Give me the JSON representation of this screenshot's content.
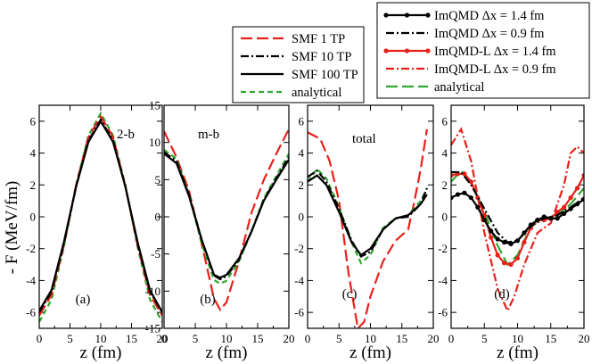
{
  "ylabel": "- F (MeV/fm)",
  "legend_smf": [
    {
      "label": "SMF 1 TP",
      "color": "#e8201a",
      "dash": "long",
      "marker": false
    },
    {
      "label": "SMF 10 TP",
      "color": "#000000",
      "dash": "dashdot",
      "marker": false
    },
    {
      "label": "SMF 100 TP",
      "color": "#000000",
      "dash": "solid",
      "marker": false
    },
    {
      "label": "analytical",
      "color": "#2ea82e",
      "dash": "short",
      "marker": false
    }
  ],
  "legend_imqmd": [
    {
      "label": "ImQMD Δx = 1.4 fm",
      "color": "#000000",
      "dash": "solid",
      "marker": true
    },
    {
      "label": "ImQMD Δx = 0.9 fm",
      "color": "#000000",
      "dash": "dashdot",
      "marker": false
    },
    {
      "label": "ImQMD-L Δx = 1.4 fm",
      "color": "#e8201a",
      "dash": "solid",
      "marker": true
    },
    {
      "label": "ImQMD-L Δx = 0.9 fm",
      "color": "#e8201a",
      "dash": "dashdot",
      "marker": false
    },
    {
      "label": "analytical",
      "color": "#2ea82e",
      "dash": "long",
      "marker": false
    }
  ],
  "chart_data": [
    {
      "type": "line",
      "id": "a",
      "inside_label": "2-b",
      "panel_label": "(a)",
      "xlabel": "z (fm)",
      "xlim": [
        0,
        20
      ],
      "ylim": [
        -7,
        7
      ],
      "xticks": [
        0,
        5,
        10,
        15,
        20
      ],
      "yticks": [
        -6,
        -4,
        -2,
        0,
        2,
        4,
        6
      ],
      "series": [
        {
          "name": "analytical",
          "color": "#2ea82e",
          "dash": "short",
          "marker": false,
          "x": [
            0,
            2,
            4,
            6,
            8,
            10,
            12,
            14,
            16,
            18,
            20
          ],
          "y": [
            -6.6,
            -5.2,
            -1.9,
            2.0,
            5.1,
            6.5,
            5.1,
            2.0,
            -1.9,
            -5.2,
            -6.6
          ]
        },
        {
          "name": "SMF 1 TP",
          "color": "#e8201a",
          "dash": "long",
          "marker": false,
          "x": [
            0,
            2,
            4,
            6,
            8,
            10,
            12,
            14,
            16,
            18,
            20
          ],
          "y": [
            -6.2,
            -4.9,
            -1.8,
            2.0,
            5.0,
            6.3,
            5.0,
            1.9,
            -1.8,
            -4.9,
            -6.2
          ]
        },
        {
          "name": "SMF 10 TP",
          "color": "#000000",
          "dash": "dashdot",
          "marker": false,
          "x": [
            0,
            2,
            4,
            6,
            8,
            10,
            12,
            14,
            16,
            18,
            20
          ],
          "y": [
            -6.0,
            -4.7,
            -1.7,
            1.9,
            4.8,
            6.1,
            4.8,
            1.9,
            -1.7,
            -4.7,
            -6.0
          ]
        },
        {
          "name": "SMF 100 TP",
          "color": "#000000",
          "dash": "solid",
          "marker": false,
          "x": [
            0,
            2,
            4,
            6,
            8,
            10,
            12,
            14,
            16,
            18,
            20
          ],
          "y": [
            -5.9,
            -4.6,
            -1.6,
            1.9,
            4.7,
            6.0,
            4.7,
            1.9,
            -1.6,
            -4.6,
            -6.0
          ]
        }
      ]
    },
    {
      "type": "line",
      "id": "b",
      "inside_label": "m-b",
      "panel_label": "(b)",
      "xlabel": "z (fm)",
      "xlim": [
        0,
        20
      ],
      "ylim": [
        -15,
        15
      ],
      "xticks": [
        0,
        5,
        10,
        15,
        20
      ],
      "yticks": [
        -15,
        -10,
        -5,
        0,
        5,
        10,
        15
      ],
      "series": [
        {
          "name": "SMF 1 TP",
          "color": "#e8201a",
          "dash": "long",
          "marker": false,
          "x": [
            0,
            2,
            4,
            6,
            8,
            9,
            10,
            12,
            14,
            16,
            18,
            20
          ],
          "y": [
            11.5,
            8.0,
            3.5,
            -3.5,
            -11.0,
            -12.5,
            -11.5,
            -6.0,
            0.5,
            5.0,
            8.5,
            11.8
          ]
        },
        {
          "name": "analytical",
          "color": "#2ea82e",
          "dash": "short",
          "marker": false,
          "x": [
            0,
            2,
            4,
            6,
            8,
            9,
            10,
            12,
            14,
            16,
            18,
            20
          ],
          "y": [
            9.0,
            7.8,
            3.0,
            -3.5,
            -8.5,
            -9.0,
            -8.6,
            -6.0,
            -2.0,
            2.5,
            5.5,
            8.5
          ]
        },
        {
          "name": "SMF 10 TP",
          "color": "#000000",
          "dash": "dashdot",
          "marker": false,
          "x": [
            0,
            2,
            4,
            6,
            8,
            9,
            10,
            12,
            14,
            16,
            18,
            20
          ],
          "y": [
            8.7,
            7.5,
            3.0,
            -3.0,
            -7.9,
            -8.4,
            -8.0,
            -5.8,
            -2.0,
            2.3,
            5.2,
            8.0
          ]
        },
        {
          "name": "SMF 100 TP",
          "color": "#000000",
          "dash": "solid",
          "marker": false,
          "x": [
            0,
            2,
            4,
            6,
            8,
            9,
            10,
            12,
            14,
            16,
            18,
            20
          ],
          "y": [
            8.5,
            7.2,
            2.8,
            -3.0,
            -7.8,
            -8.2,
            -7.8,
            -5.6,
            -2.0,
            2.2,
            5.0,
            7.7
          ]
        }
      ]
    },
    {
      "type": "line",
      "id": "c",
      "inside_label": "total",
      "panel_label": "(c)",
      "xlabel": "z (fm)",
      "xlim": [
        0,
        20
      ],
      "ylim": [
        -7,
        7
      ],
      "xticks": [
        0,
        5,
        10,
        15,
        20
      ],
      "yticks": [
        -6,
        -4,
        -2,
        0,
        2,
        4,
        6
      ],
      "series": [
        {
          "name": "SMF 1 TP",
          "color": "#e8201a",
          "dash": "long",
          "marker": false,
          "x": [
            0,
            2,
            3.5,
            5,
            6.5,
            8,
            9,
            10,
            12,
            14,
            16,
            17,
            18,
            19
          ],
          "y": [
            5.3,
            4.9,
            3.5,
            1.0,
            -3.5,
            -7.0,
            -6.6,
            -5.0,
            -2.8,
            -1.5,
            -0.8,
            1.0,
            3.0,
            5.5
          ]
        },
        {
          "name": "analytical",
          "color": "#2ea82e",
          "dash": "short",
          "marker": false,
          "x": [
            0,
            1.5,
            3,
            5,
            7,
            8.5,
            10,
            12,
            14,
            16,
            18,
            19
          ],
          "y": [
            2.2,
            3.0,
            2.4,
            0.6,
            -1.6,
            -2.9,
            -2.4,
            -0.7,
            -0.1,
            0.1,
            1.0,
            1.8
          ]
        },
        {
          "name": "SMF 10 TP",
          "color": "#000000",
          "dash": "dashdot",
          "marker": false,
          "x": [
            0,
            1.5,
            3,
            5,
            7,
            8.5,
            10,
            12,
            14,
            16,
            18,
            19
          ],
          "y": [
            2.5,
            2.9,
            2.2,
            0.5,
            -1.5,
            -2.5,
            -2.2,
            -0.8,
            -0.1,
            0.0,
            0.8,
            1.8
          ]
        },
        {
          "name": "SMF 100 TP",
          "color": "#000000",
          "dash": "solid",
          "marker": false,
          "x": [
            0,
            1.5,
            3,
            5,
            7,
            8.5,
            10,
            12,
            14,
            16,
            18,
            19
          ],
          "y": [
            2.2,
            2.6,
            2.0,
            0.3,
            -1.6,
            -2.4,
            -2.0,
            -0.8,
            -0.1,
            0.1,
            0.8,
            1.4
          ]
        }
      ]
    },
    {
      "type": "line",
      "id": "d",
      "inside_label": "",
      "panel_label": "(d)",
      "xlabel": "z (fm)",
      "xlim": [
        0,
        20
      ],
      "ylim": [
        -7,
        7
      ],
      "xticks": [
        0,
        5,
        10,
        15,
        20
      ],
      "yticks": [
        -6,
        -4,
        -2,
        0,
        2,
        4,
        6
      ],
      "series": [
        {
          "name": "ImQMD-L Δx = 0.9 fm",
          "color": "#e8201a",
          "dash": "dashdot",
          "marker": false,
          "x": [
            0,
            1.5,
            3,
            5,
            7,
            8.5,
            9.5,
            11,
            13,
            15,
            17,
            18,
            19,
            20
          ],
          "y": [
            4.5,
            5.5,
            3.5,
            -1.0,
            -4.5,
            -5.9,
            -5.0,
            -3.0,
            -1.0,
            -0.4,
            2.0,
            4.0,
            4.4,
            4.0
          ]
        },
        {
          "name": "analytical",
          "color": "#2ea82e",
          "dash": "long",
          "marker": false,
          "x": [
            0,
            1.5,
            3,
            5,
            7,
            8.5,
            10,
            12,
            14,
            16,
            18,
            20
          ],
          "y": [
            2.2,
            2.9,
            2.2,
            0.3,
            -1.8,
            -3.0,
            -2.4,
            -0.6,
            -0.1,
            0.1,
            0.8,
            1.8
          ]
        },
        {
          "name": "ImQMD-L Δx = 1.4 fm",
          "color": "#e8201a",
          "dash": "solid",
          "marker": true,
          "x": [
            0,
            1,
            2,
            3,
            4,
            5,
            6,
            7,
            8,
            9,
            10,
            11,
            12,
            13,
            14,
            15,
            16,
            17,
            18,
            19,
            20
          ],
          "y": [
            2.6,
            2.7,
            2.7,
            2.2,
            1.2,
            0.1,
            -1.3,
            -2.4,
            -2.9,
            -3.0,
            -2.6,
            -1.6,
            -0.7,
            -0.2,
            -0.2,
            -0.1,
            0.3,
            0.6,
            1.2,
            1.8,
            2.6
          ]
        },
        {
          "name": "ImQMD Δx = 0.9 fm",
          "color": "#000000",
          "dash": "dashdot",
          "marker": false,
          "x": [
            0,
            1.5,
            3,
            5,
            7,
            8.5,
            10,
            12,
            14,
            16,
            18,
            20
          ],
          "y": [
            2.8,
            2.8,
            2.0,
            0.5,
            -1.0,
            -1.6,
            -1.5,
            -0.6,
            -0.1,
            0.1,
            0.6,
            1.2
          ]
        },
        {
          "name": "ImQMD Δx = 1.4 fm",
          "color": "#000000",
          "dash": "solid",
          "marker": true,
          "x": [
            0,
            1,
            2,
            3,
            4,
            5,
            6,
            7,
            8,
            9,
            10,
            11,
            12,
            13,
            14,
            15,
            16,
            17,
            18,
            19,
            20
          ],
          "y": [
            1.2,
            1.4,
            1.5,
            1.2,
            0.6,
            -0.2,
            -0.9,
            -1.4,
            -1.6,
            -1.7,
            -1.5,
            -1.0,
            -0.5,
            -0.2,
            0.0,
            -0.1,
            -0.1,
            0.2,
            0.5,
            0.8,
            1.1
          ]
        }
      ]
    }
  ]
}
